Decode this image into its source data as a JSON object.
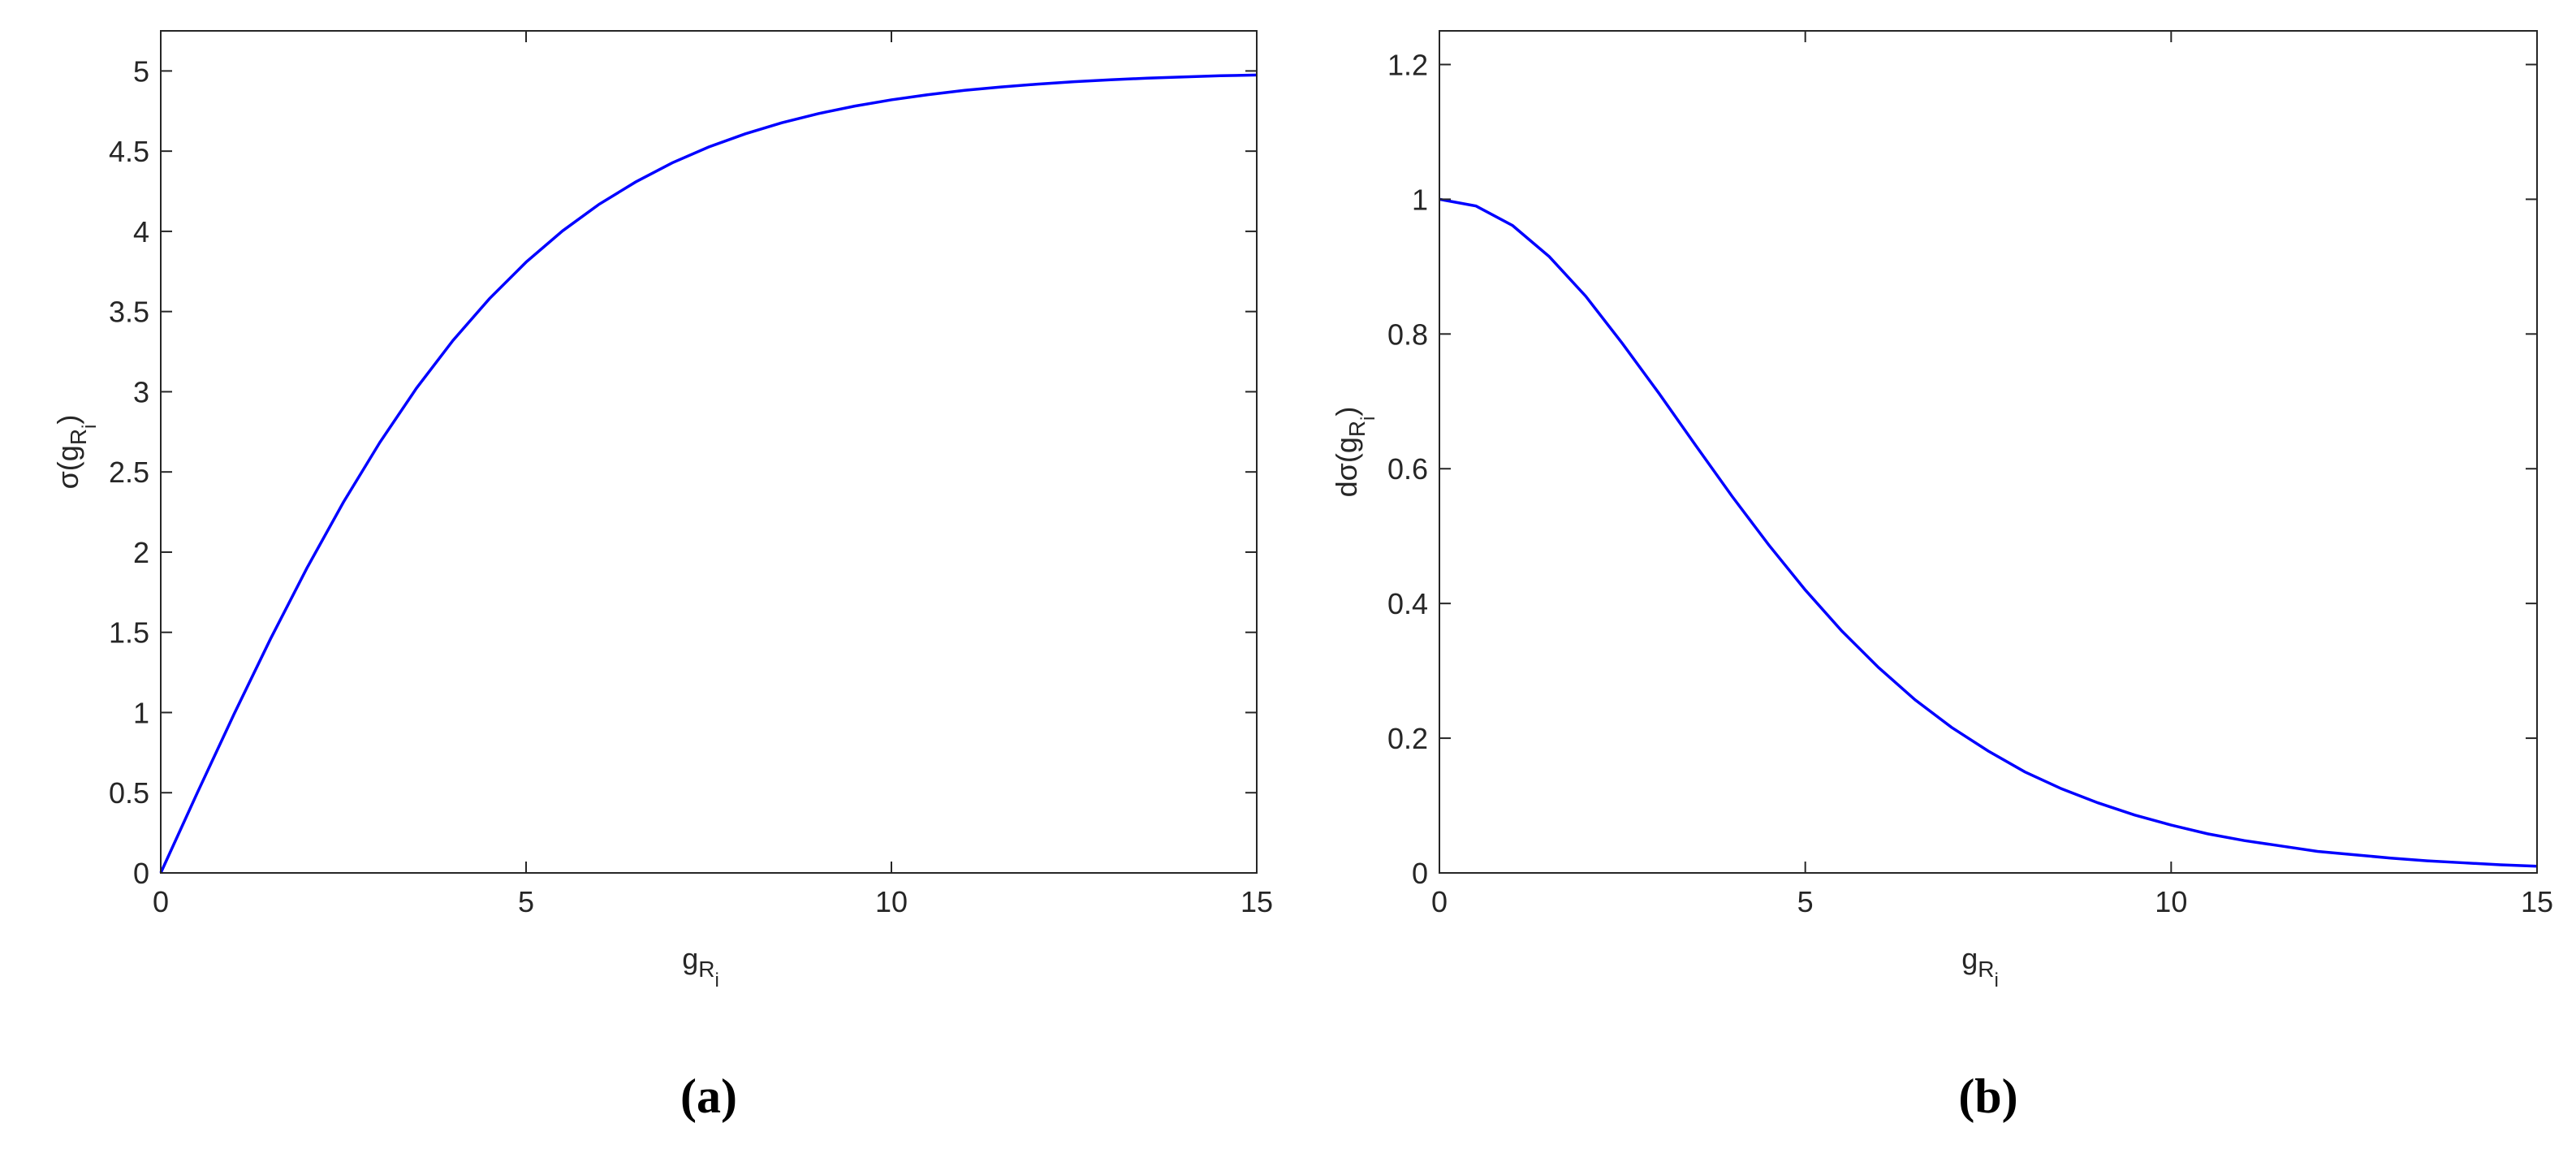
{
  "chart_data": [
    {
      "type": "line",
      "caption": "(a)",
      "xlabel": {
        "base": "g",
        "sub": "R",
        "subsub": "i"
      },
      "ylabel": {
        "prefix": "σ(g",
        "sub": "R",
        "subsub": "i",
        "suffix": ")"
      },
      "x": [
        0,
        0.5,
        1,
        1.5,
        2,
        2.5,
        3,
        3.5,
        4,
        4.5,
        5,
        5.5,
        6,
        6.5,
        7,
        7.5,
        8,
        8.5,
        9,
        9.5,
        10,
        10.5,
        11,
        11.5,
        12,
        12.5,
        13,
        13.5,
        14,
        14.5,
        15
      ],
      "series": [
        {
          "color": "#0000ff",
          "values": [
            0,
            0.499,
            0.987,
            1.457,
            1.9,
            2.311,
            2.685,
            3.022,
            3.32,
            3.581,
            3.808,
            4.003,
            4.169,
            4.308,
            4.427,
            4.526,
            4.608,
            4.677,
            4.734,
            4.781,
            4.82,
            4.852,
            4.879,
            4.9,
            4.918,
            4.933,
            4.945,
            4.955,
            4.963,
            4.97,
            4.975
          ]
        }
      ],
      "xlim": [
        0,
        15
      ],
      "xticks": [
        0,
        5,
        10,
        15
      ],
      "ylim": [
        0,
        5.25
      ],
      "yticks": [
        0,
        0.5,
        1,
        1.5,
        2,
        2.5,
        3,
        3.5,
        4,
        4.5,
        5
      ]
    },
    {
      "type": "line",
      "caption": "(b)",
      "xlabel": {
        "base": "g",
        "sub": "R",
        "subsub": "i"
      },
      "ylabel": {
        "prefix": "dσ(g",
        "sub": "R",
        "subsub": "i",
        "suffix": ")"
      },
      "x": [
        0,
        0.5,
        1,
        1.5,
        2,
        2.5,
        3,
        3.5,
        4,
        4.5,
        5,
        5.5,
        6,
        6.5,
        7,
        7.5,
        8,
        8.5,
        9,
        9.5,
        10,
        10.5,
        11,
        11.5,
        12,
        12.5,
        13,
        13.5,
        14,
        14.5,
        15
      ],
      "series": [
        {
          "color": "#0000ff",
          "values": [
            1,
            0.99,
            0.961,
            0.915,
            0.856,
            0.786,
            0.712,
            0.635,
            0.559,
            0.487,
            0.42,
            0.359,
            0.305,
            0.257,
            0.216,
            0.181,
            0.15,
            0.125,
            0.104,
            0.086,
            0.071,
            0.058,
            0.048,
            0.04,
            0.032,
            0.027,
            0.022,
            0.018,
            0.015,
            0.012,
            0.01
          ]
        }
      ],
      "xlim": [
        0,
        15
      ],
      "xticks": [
        0,
        5,
        10,
        15
      ],
      "ylim": [
        0,
        1.25
      ],
      "yticks": [
        0,
        0.2,
        0.4,
        0.6,
        0.8,
        1,
        1.2
      ]
    }
  ]
}
